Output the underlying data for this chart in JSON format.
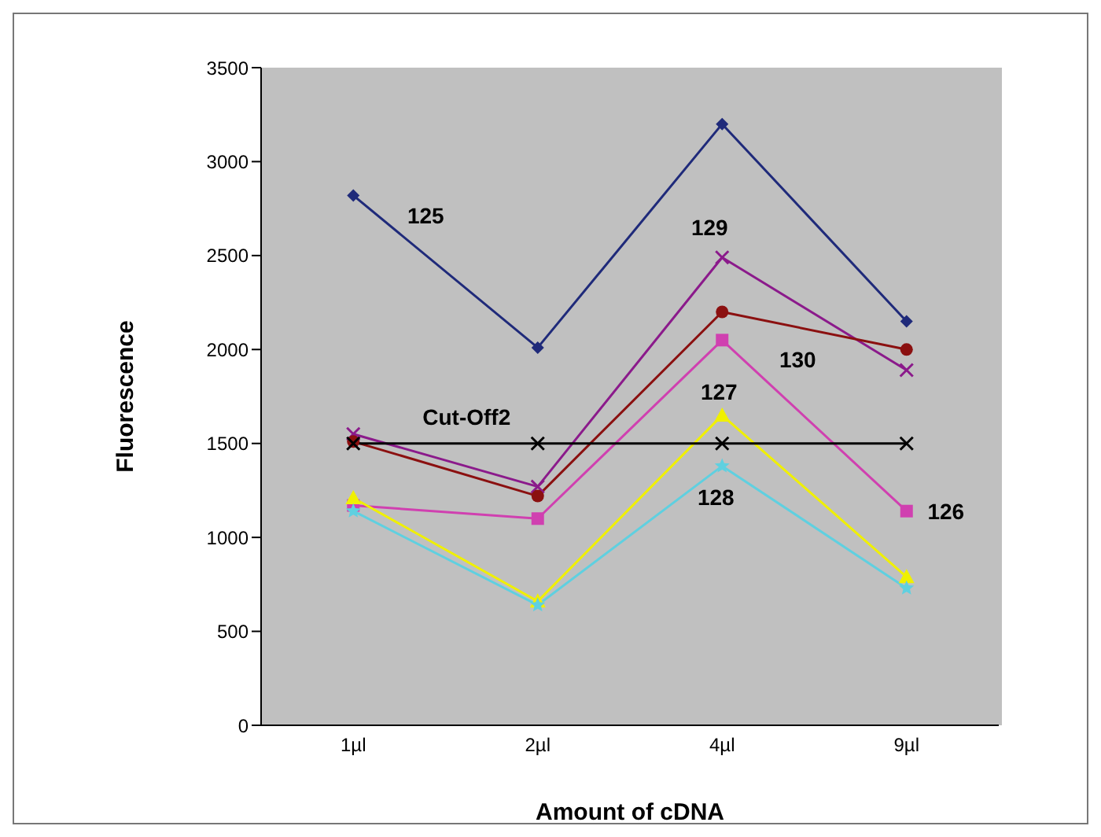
{
  "chart_data": {
    "type": "line",
    "xlabel": "Amount of cDNA",
    "ylabel": "Fluorescence",
    "categories": [
      "1µl",
      "2µl",
      "4µl",
      "9µl"
    ],
    "ylim": [
      0,
      3500
    ],
    "yticks": [
      0,
      500,
      1000,
      1500,
      2000,
      2500,
      3000,
      3500
    ],
    "series": [
      {
        "name": "125",
        "color": "#1f2a7a",
        "marker": "diamond",
        "values": [
          2820,
          2010,
          3200,
          2150
        ]
      },
      {
        "name": "129",
        "color": "#8b1a8b",
        "marker": "cross",
        "values": [
          1550,
          1270,
          2490,
          1890
        ]
      },
      {
        "name": "130",
        "color": "#8b1010",
        "marker": "circle",
        "values": [
          1510,
          1220,
          2200,
          2000
        ]
      },
      {
        "name": "126",
        "color": "#d040b0",
        "marker": "square",
        "values": [
          1170,
          1100,
          2050,
          1140
        ]
      },
      {
        "name": "127",
        "color": "#f0f000",
        "marker": "triangle",
        "values": [
          1210,
          660,
          1650,
          790
        ]
      },
      {
        "name": "128",
        "color": "#5fd0e0",
        "marker": "star",
        "values": [
          1140,
          640,
          1380,
          730
        ]
      },
      {
        "name": "Cut-Off2",
        "color": "#000000",
        "marker": "cross",
        "values": [
          1500,
          1500,
          1500,
          1500
        ]
      }
    ]
  }
}
